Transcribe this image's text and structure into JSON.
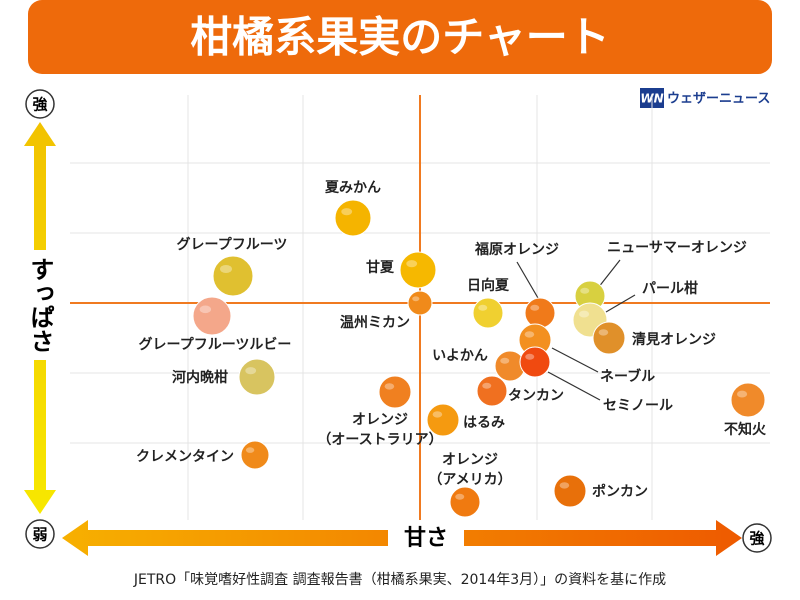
{
  "header": {
    "title": "柑橘系果実のチャート",
    "logo": "ウェザーニュース",
    "logo_mark": "WN"
  },
  "axes": {
    "y_label": "すっぱさ",
    "x_label": "甘さ",
    "y_top": "強",
    "y_bottom": "弱",
    "x_right": "強"
  },
  "nodes": [
    {
      "label": [
        "夏みかん"
      ]
    },
    {
      "label": [
        "グレープフルーツ"
      ]
    },
    {
      "label": [
        "甘夏"
      ]
    },
    {
      "label": [
        "温州ミカン"
      ]
    },
    {
      "label": [
        "グレープフルーツルビー"
      ]
    },
    {
      "label": [
        "河内晩柑"
      ]
    },
    {
      "label": [
        "福原オレンジ"
      ]
    },
    {
      "label": [
        "日向夏"
      ]
    },
    {
      "label": [
        "ニューサマーオレンジ"
      ]
    },
    {
      "label": [
        "パール柑"
      ]
    },
    {
      "label": [
        "清見オレンジ"
      ]
    },
    {
      "label": [
        "いよかん"
      ]
    },
    {
      "label": [
        "ネーブル"
      ]
    },
    {
      "label": [
        "セミノール"
      ]
    },
    {
      "label": [
        "タンカン"
      ]
    },
    {
      "label": [
        "オレンジ",
        "（オーストラリア）"
      ]
    },
    {
      "label": [
        "はるみ"
      ]
    },
    {
      "label": [
        "不知火"
      ]
    },
    {
      "label": [
        "クレメンタイン"
      ]
    },
    {
      "label": [
        "オレンジ",
        "（アメリカ）"
      ]
    },
    {
      "label": [
        "ポンカン"
      ]
    }
  ],
  "footer": {
    "source": "JETRO「味覚嗜好性調査 調査報告書（柑橘系果実、2014年3月）」の資料を基に作成"
  }
}
